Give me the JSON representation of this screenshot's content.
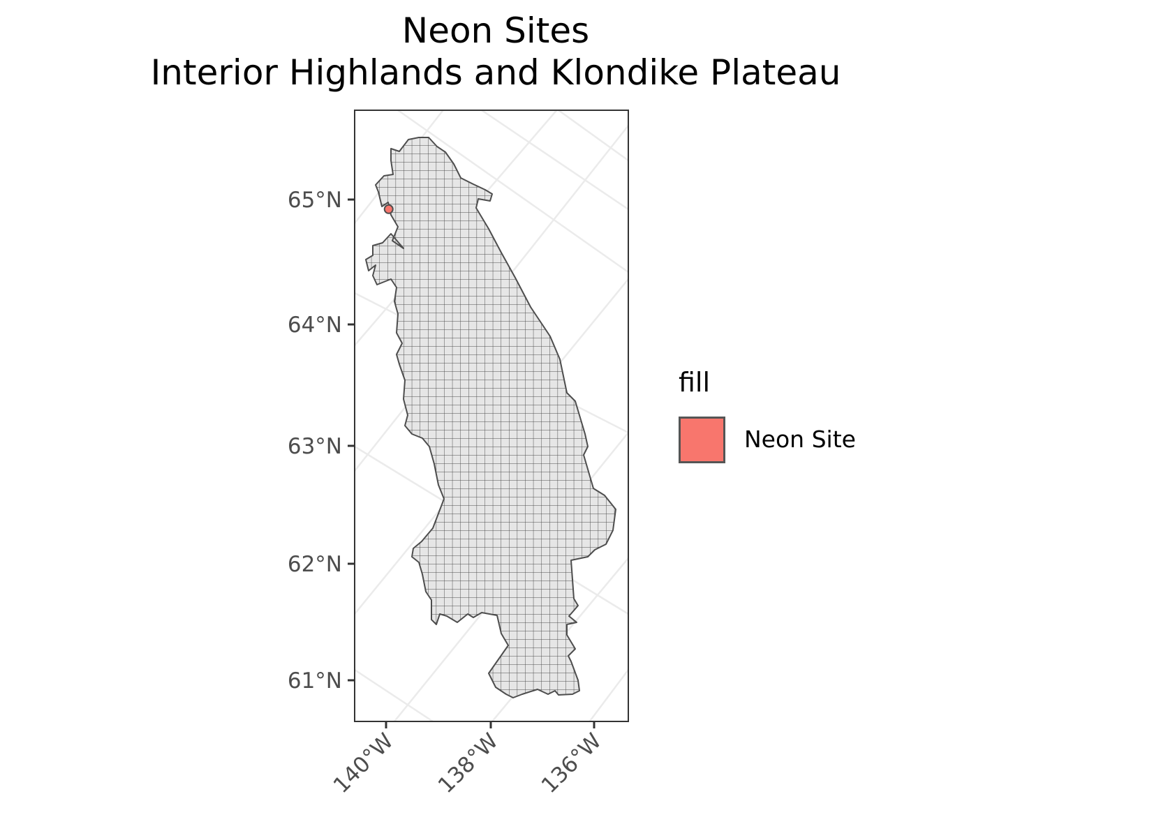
{
  "title": "Neon Sites",
  "subtitle": "Interior Highlands and Klondike Plateau",
  "y_axis": {
    "ticks": [
      "61°N",
      "62°N",
      "63°N",
      "64°N",
      "65°N"
    ]
  },
  "x_axis": {
    "ticks": [
      "140°W",
      "138°W",
      "136°W"
    ]
  },
  "legend": {
    "title": "fill",
    "entries": [
      {
        "label": "Neon Site",
        "color": "#F8766D"
      }
    ]
  },
  "colors": {
    "region_fill": "#e6e6e6",
    "region_stroke": "#4d4d4d",
    "neon_site": "#F8766D",
    "graticule": "#ebebeb"
  },
  "chart_data": {
    "type": "map",
    "region": "Interior Highlands and Klondike Plateau",
    "ylim": [
      60.65,
      65.45
    ],
    "xlim": [
      -140.6,
      -135.35
    ],
    "neon_sites": [
      {
        "label": "Neon Site",
        "lon": -139.95,
        "lat": 64.92
      }
    ],
    "grid": true,
    "legend_position": "right"
  }
}
